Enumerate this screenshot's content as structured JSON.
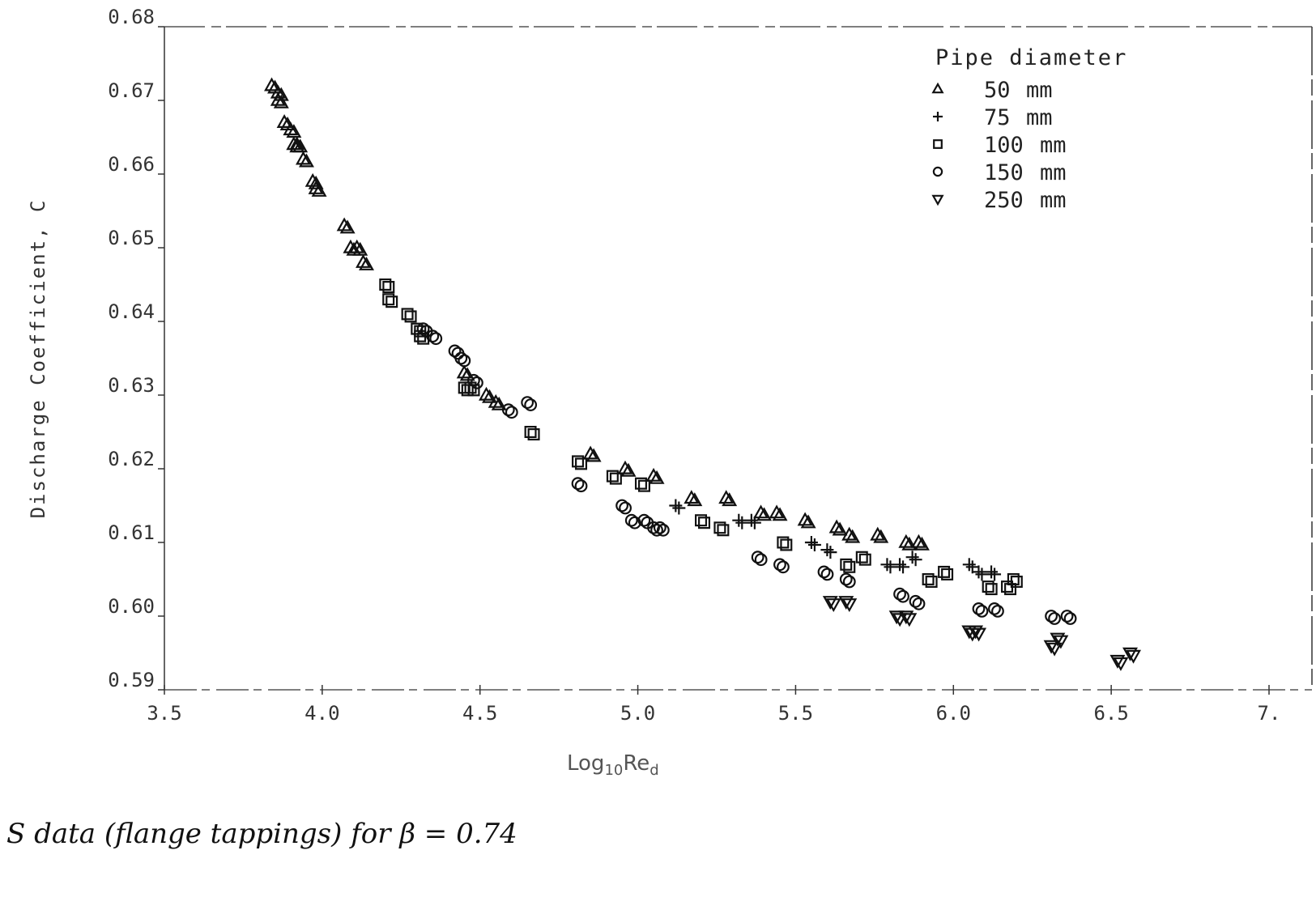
{
  "chart_data": {
    "type": "scatter",
    "title": "",
    "xlabel": "Log10 Red",
    "xlabel_parts": {
      "base": "Log",
      "sub": "10",
      "main": "Re",
      "sub2": "d"
    },
    "ylabel": "Discharge Coefficient, C",
    "xlim": [
      3.5,
      7.0
    ],
    "ylim": [
      0.59,
      0.68
    ],
    "x_ticks": [
      "3.5",
      "4.0",
      "4.5",
      "5.0",
      "5.5",
      "6.0",
      "6.5",
      "7."
    ],
    "x_tick_values": [
      3.5,
      4.0,
      4.5,
      5.0,
      5.5,
      6.0,
      6.5,
      7.0
    ],
    "y_ticks": [
      "0.68",
      "0.67",
      "0.66",
      "0.65",
      "0.64",
      "0.63",
      "0.62",
      "0.61",
      "0.60",
      "0.59"
    ],
    "y_tick_values": [
      0.68,
      0.67,
      0.66,
      0.65,
      0.64,
      0.63,
      0.62,
      0.61,
      0.6,
      0.59
    ],
    "grid": false,
    "legend_title": "Pipe diameter",
    "legend_position": "upper right",
    "series": [
      {
        "name": "50 mm",
        "marker": "triangle-up",
        "points": [
          [
            3.84,
            0.672
          ],
          [
            3.86,
            0.671
          ],
          [
            3.86,
            0.67
          ],
          [
            3.88,
            0.667
          ],
          [
            3.9,
            0.666
          ],
          [
            3.91,
            0.664
          ],
          [
            3.92,
            0.664
          ],
          [
            3.94,
            0.662
          ],
          [
            3.97,
            0.659
          ],
          [
            3.98,
            0.658
          ],
          [
            4.07,
            0.653
          ],
          [
            4.09,
            0.65
          ],
          [
            4.11,
            0.65
          ],
          [
            4.13,
            0.648
          ],
          [
            4.45,
            0.633
          ],
          [
            4.52,
            0.63
          ],
          [
            4.55,
            0.629
          ],
          [
            4.85,
            0.622
          ],
          [
            4.96,
            0.62
          ],
          [
            5.05,
            0.619
          ],
          [
            5.17,
            0.616
          ],
          [
            5.28,
            0.616
          ],
          [
            5.39,
            0.614
          ],
          [
            5.44,
            0.614
          ],
          [
            5.53,
            0.613
          ],
          [
            5.63,
            0.612
          ],
          [
            5.67,
            0.611
          ],
          [
            5.76,
            0.611
          ],
          [
            5.85,
            0.61
          ],
          [
            5.89,
            0.61
          ]
        ]
      },
      {
        "name": "75 mm",
        "marker": "plus",
        "points": [
          [
            5.12,
            0.615
          ],
          [
            5.32,
            0.613
          ],
          [
            5.36,
            0.613
          ],
          [
            5.55,
            0.61
          ],
          [
            5.6,
            0.609
          ],
          [
            5.79,
            0.607
          ],
          [
            5.83,
            0.607
          ],
          [
            5.87,
            0.608
          ],
          [
            6.05,
            0.607
          ],
          [
            6.08,
            0.606
          ],
          [
            6.12,
            0.606
          ]
        ]
      },
      {
        "name": "100 mm",
        "marker": "square",
        "points": [
          [
            4.2,
            0.645
          ],
          [
            4.21,
            0.643
          ],
          [
            4.27,
            0.641
          ],
          [
            4.3,
            0.639
          ],
          [
            4.31,
            0.638
          ],
          [
            4.45,
            0.631
          ],
          [
            4.47,
            0.631
          ],
          [
            4.66,
            0.625
          ],
          [
            4.81,
            0.621
          ],
          [
            4.92,
            0.619
          ],
          [
            5.01,
            0.618
          ],
          [
            5.2,
            0.613
          ],
          [
            5.26,
            0.612
          ],
          [
            5.46,
            0.61
          ],
          [
            5.66,
            0.607
          ],
          [
            5.71,
            0.608
          ],
          [
            5.92,
            0.605
          ],
          [
            5.97,
            0.606
          ],
          [
            6.11,
            0.604
          ],
          [
            6.17,
            0.604
          ],
          [
            6.19,
            0.605
          ]
        ]
      },
      {
        "name": "150 mm",
        "marker": "circle",
        "points": [
          [
            4.32,
            0.639
          ],
          [
            4.35,
            0.638
          ],
          [
            4.42,
            0.636
          ],
          [
            4.44,
            0.635
          ],
          [
            4.48,
            0.632
          ],
          [
            4.59,
            0.628
          ],
          [
            4.65,
            0.629
          ],
          [
            4.81,
            0.618
          ],
          [
            4.95,
            0.615
          ],
          [
            4.98,
            0.613
          ],
          [
            5.02,
            0.613
          ],
          [
            5.05,
            0.612
          ],
          [
            5.07,
            0.612
          ],
          [
            5.38,
            0.608
          ],
          [
            5.45,
            0.607
          ],
          [
            5.59,
            0.606
          ],
          [
            5.66,
            0.605
          ],
          [
            5.83,
            0.603
          ],
          [
            5.88,
            0.602
          ],
          [
            6.08,
            0.601
          ],
          [
            6.13,
            0.601
          ],
          [
            6.31,
            0.6
          ],
          [
            6.36,
            0.6
          ]
        ]
      },
      {
        "name": "250 mm",
        "marker": "triangle-down",
        "points": [
          [
            5.61,
            0.602
          ],
          [
            5.66,
            0.602
          ],
          [
            5.82,
            0.6
          ],
          [
            5.85,
            0.6
          ],
          [
            6.05,
            0.598
          ],
          [
            6.07,
            0.598
          ],
          [
            6.31,
            0.596
          ],
          [
            6.33,
            0.597
          ],
          [
            6.52,
            0.594
          ],
          [
            6.56,
            0.595
          ]
        ]
      }
    ]
  },
  "caption": "S data (flange tappings) for β = 0.74",
  "colors": {
    "ink": "#111111",
    "axis": "#333333",
    "background": "#ffffff"
  }
}
